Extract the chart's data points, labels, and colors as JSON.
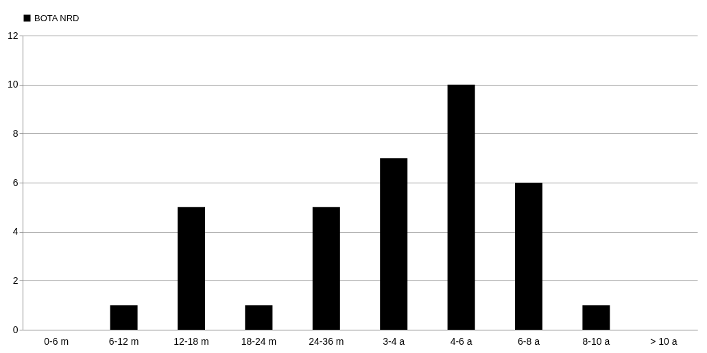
{
  "chart_data": {
    "type": "bar",
    "categories": [
      "0-6 m",
      "6-12 m",
      "12-18 m",
      "18-24 m",
      "24-36 m",
      "3-4 a",
      "4-6 a",
      "6-8 a",
      "8-10 a",
      "> 10 a"
    ],
    "series": [
      {
        "name": "BOTA NRD",
        "color": "#000000",
        "values": [
          0,
          1,
          5,
          1,
          5,
          7,
          10,
          6,
          1,
          0
        ]
      }
    ],
    "ylim": [
      0,
      12
    ],
    "yticks": [
      0,
      2,
      4,
      6,
      8,
      10,
      12
    ],
    "grid": "y",
    "legend": "top"
  }
}
